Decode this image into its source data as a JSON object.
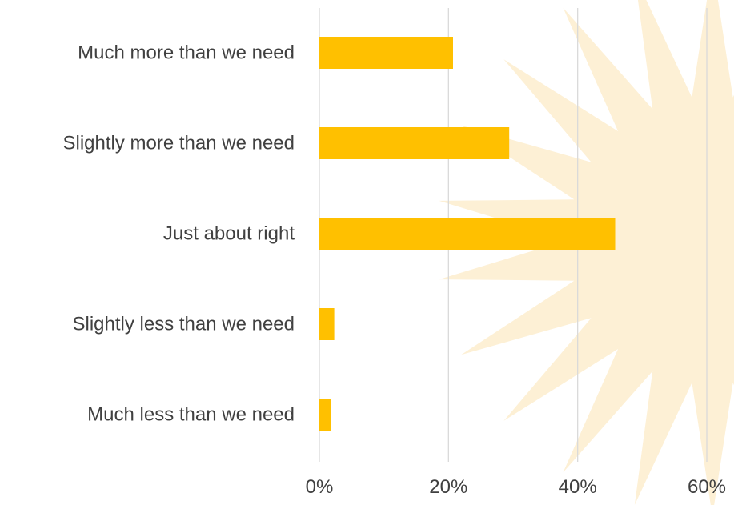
{
  "chart_data": {
    "type": "bar",
    "orientation": "horizontal",
    "categories": [
      "Much more than we need",
      "Slightly more than we need",
      "Just about right",
      "Slightly less than we need",
      "Much less than we need"
    ],
    "values": [
      20.7,
      29.4,
      45.8,
      2.3,
      1.8
    ],
    "value_unit": "%",
    "xlim": [
      0,
      60
    ],
    "x_ticks": [
      "0%",
      "20%",
      "40%",
      "60%"
    ],
    "grid": "vertical",
    "legend": "none",
    "title": "",
    "xlabel": "",
    "ylabel": ""
  },
  "colors": {
    "bar": "#FFC000",
    "gridline": "#D9D9D9",
    "text": "#404040",
    "background_burst": "#FDF0D5"
  },
  "decorations": {
    "background_icon": "starburst-icon"
  }
}
